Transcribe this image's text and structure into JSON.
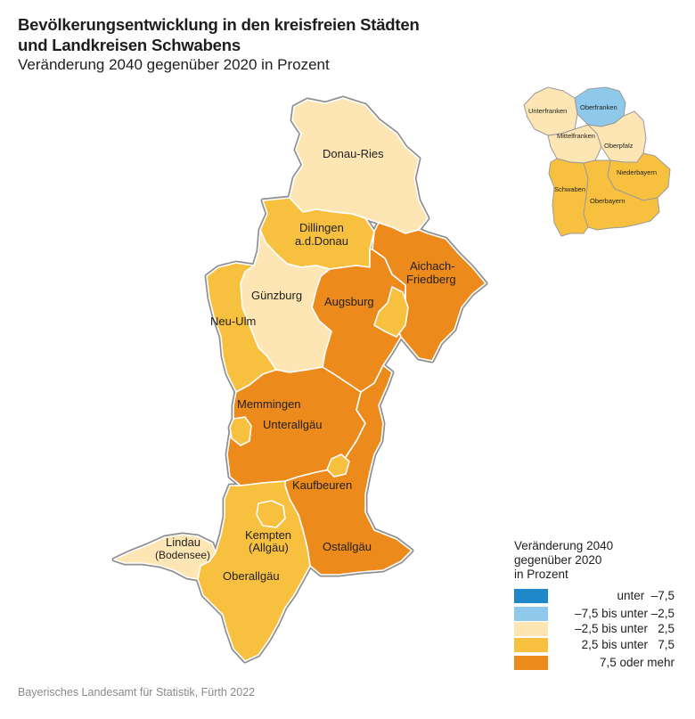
{
  "title_line1": "Bevölkerungsentwicklung in den kreisfreien Städten",
  "title_line2": "und Landkreisen Schwabens",
  "subtitle": "Veränderung 2040 gegenüber 2020 in Prozent",
  "colors": {
    "class1": "#1e88c8",
    "class2": "#8ec8ea",
    "class3": "#fde6b3",
    "class4": "#f8c03f",
    "class5": "#ec8a1c",
    "border": "#8f8f8f"
  },
  "regions": [
    {
      "name": "Donau-Ries",
      "class": 3
    },
    {
      "name_line1": "Dillingen",
      "name_line2": "a.d.Donau",
      "class": 4
    },
    {
      "name_line1": "Aichach-",
      "name_line2": "Friedberg",
      "class": 5
    },
    {
      "name": "Augsburg",
      "class": 5
    },
    {
      "name": "Günzburg",
      "class": 3
    },
    {
      "name": "Neu-Ulm",
      "class": 4
    },
    {
      "name": "Memmingen",
      "class": 5
    },
    {
      "name": "Unterallgäu",
      "class": 5
    },
    {
      "name": "Kaufbeuren",
      "class": 5
    },
    {
      "name_line1": "Kempten",
      "name_line2": "(Allgäu)",
      "class": 4
    },
    {
      "name_line1": "Lindau",
      "name_line2": "(Bodensee)",
      "class": 3
    },
    {
      "name": "Oberallgäu",
      "class": 4
    },
    {
      "name": "Ostallgäu",
      "class": 5
    }
  ],
  "inset": {
    "labels": [
      "Unterfranken",
      "Oberfranken",
      "Mittelfranken",
      "Oberpfalz",
      "Niederbayern",
      "Schwaben",
      "Oberbayern"
    ]
  },
  "legend": {
    "title_line1": "Veränderung 2040",
    "title_line2": "gegenüber 2020",
    "title_line3": "in Prozent",
    "items": [
      {
        "label": "unter  –7,5",
        "color": "#1e88c8"
      },
      {
        "label": "–7,5 bis unter –2,5",
        "color": "#8ec8ea"
      },
      {
        "label": "–2,5 bis unter   2,5",
        "color": "#fde6b3"
      },
      {
        "label": "2,5 bis unter   7,5",
        "color": "#f8c03f"
      },
      {
        "label": "7,5 oder mehr",
        "color": "#ec8a1c"
      }
    ]
  },
  "source": "Bayerisches Landesamt für Statistik, Fürth 2022"
}
